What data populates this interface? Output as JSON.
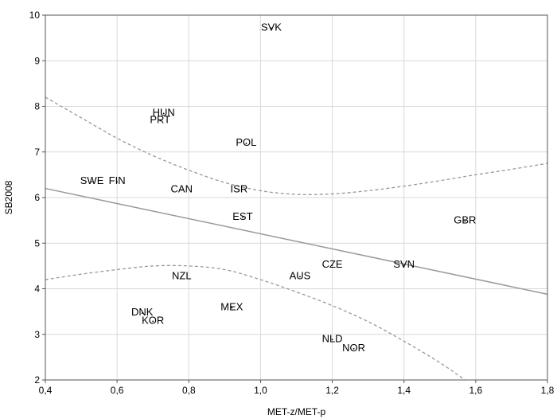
{
  "chart_data": {
    "type": "scatter",
    "title": "",
    "xlabel": "MET-z/MET-p",
    "ylabel": "SB2008",
    "xlim": [
      0.4,
      1.8
    ],
    "ylim": [
      2,
      10
    ],
    "xticks": [
      0.4,
      0.6,
      0.8,
      1.0,
      1.2,
      1.4,
      1.6,
      1.8
    ],
    "xtick_labels": [
      "0,4",
      "0,6",
      "0,8",
      "1,0",
      "1,2",
      "1,4",
      "1,6",
      "1,8"
    ],
    "yticks": [
      2,
      3,
      4,
      5,
      6,
      7,
      8,
      9,
      10
    ],
    "ytick_labels": [
      "2",
      "3",
      "4",
      "5",
      "6",
      "7",
      "8",
      "9",
      "10"
    ],
    "grid": true,
    "points": [
      {
        "label": "SVK",
        "x": 1.03,
        "y": 9.75
      },
      {
        "label": "HUN",
        "x": 0.73,
        "y": 7.88
      },
      {
        "label": "PRT",
        "x": 0.72,
        "y": 7.72
      },
      {
        "label": "POL",
        "x": 0.96,
        "y": 7.22
      },
      {
        "label": "SWE",
        "x": 0.53,
        "y": 6.38
      },
      {
        "label": "FIN",
        "x": 0.6,
        "y": 6.38
      },
      {
        "label": "CAN",
        "x": 0.78,
        "y": 6.2
      },
      {
        "label": "ISR",
        "x": 0.94,
        "y": 6.2
      },
      {
        "label": "EST",
        "x": 0.95,
        "y": 5.6
      },
      {
        "label": "GBR",
        "x": 1.57,
        "y": 5.52
      },
      {
        "label": "CZE",
        "x": 1.2,
        "y": 4.55
      },
      {
        "label": "SVN",
        "x": 1.4,
        "y": 4.55
      },
      {
        "label": "AUS",
        "x": 1.11,
        "y": 4.3
      },
      {
        "label": "NZL",
        "x": 0.78,
        "y": 4.3
      },
      {
        "label": "MEX",
        "x": 0.92,
        "y": 3.62
      },
      {
        "label": "DNK",
        "x": 0.67,
        "y": 3.5
      },
      {
        "label": "KOR",
        "x": 0.7,
        "y": 3.32
      },
      {
        "label": "NLD",
        "x": 1.2,
        "y": 2.92
      },
      {
        "label": "NOR",
        "x": 1.26,
        "y": 2.72
      }
    ],
    "regression_line": {
      "x": [
        0.4,
        1.8
      ],
      "y": [
        6.2,
        3.88
      ],
      "color": "#999999"
    },
    "confidence_upper": {
      "x": [
        0.4,
        0.5,
        0.6,
        0.7,
        0.8,
        0.9,
        1.0,
        1.1,
        1.2,
        1.3,
        1.4,
        1.5,
        1.6,
        1.7,
        1.8
      ],
      "y": [
        8.2,
        7.75,
        7.3,
        6.92,
        6.6,
        6.33,
        6.15,
        6.07,
        6.08,
        6.15,
        6.25,
        6.37,
        6.5,
        6.62,
        6.75
      ],
      "color": "#999999"
    },
    "confidence_lower": {
      "x": [
        0.4,
        0.5,
        0.6,
        0.7,
        0.8,
        0.9,
        1.0,
        1.1,
        1.2,
        1.3,
        1.4,
        1.5,
        1.57
      ],
      "y": [
        4.2,
        4.32,
        4.42,
        4.5,
        4.5,
        4.42,
        4.2,
        3.93,
        3.63,
        3.28,
        2.85,
        2.38,
        2.0
      ],
      "color": "#999999"
    },
    "colors": {
      "grid": "#d9d9d9",
      "frame": "#555555",
      "text": "#000000"
    }
  }
}
